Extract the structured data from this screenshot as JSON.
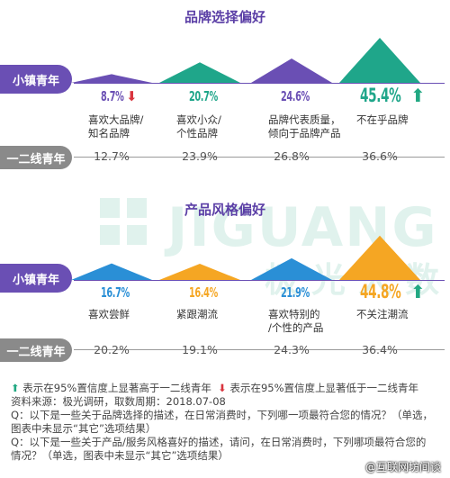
{
  "colors": {
    "purple": "#6a4fb4",
    "teal": "#1fa68a",
    "blue": "#2a8fd6",
    "orange": "#f5a623",
    "green_arrow": "#21a882",
    "red_arrow": "#d9343e"
  },
  "watermark": {
    "text": "JIGUANG",
    "cn": "极光大数据"
  },
  "brand_section": {
    "title": "品牌选择偏好",
    "row1_label": "小镇青年",
    "row2_label": "一二线青年"
  },
  "style_section": {
    "title": "产品风格偏好",
    "row1_label": "小镇青年",
    "row2_label": "一二线青年"
  },
  "chart_data": [
    {
      "type": "bar",
      "title": "品牌选择偏好",
      "categories": [
        "喜欢大品牌/知名品牌",
        "喜欢小众/个性品牌",
        "品牌代表质量，倾向于品牌产品",
        "不在乎品牌"
      ],
      "series": [
        {
          "name": "小镇青年",
          "values": [
            8.7,
            20.7,
            24.6,
            45.4
          ]
        },
        {
          "name": "一二线青年",
          "values": [
            12.7,
            23.9,
            26.8,
            36.6
          ]
        }
      ],
      "significance": [
        "lower",
        "none",
        "none",
        "higher"
      ]
    },
    {
      "type": "bar",
      "title": "产品风格偏好",
      "categories": [
        "喜欢尝鲜",
        "紧跟潮流",
        "喜欢特别的/个性的产品",
        "不关注潮流"
      ],
      "series": [
        {
          "name": "小镇青年",
          "values": [
            16.7,
            16.4,
            21.9,
            44.8
          ]
        },
        {
          "name": "一二线青年",
          "values": [
            20.2,
            19.1,
            24.3,
            36.4
          ]
        }
      ],
      "significance": [
        "none",
        "none",
        "none",
        "higher"
      ]
    }
  ],
  "brand_items": [
    {
      "pct": "8.7%",
      "label1": "喜欢大品牌/",
      "label2": "知名品牌",
      "sec": "12.7%"
    },
    {
      "pct": "20.7%",
      "label1": "喜欢小众/",
      "label2": "个性品牌",
      "sec": "23.9%"
    },
    {
      "pct": "24.6%",
      "label1": "品牌代表质量，",
      "label2": "倾向于品牌产品",
      "sec": "26.8%"
    },
    {
      "pct": "45.4%",
      "label1": "不在乎品牌",
      "label2": "",
      "sec": "36.6%"
    }
  ],
  "style_items": [
    {
      "pct": "16.7%",
      "label1": "喜欢尝鲜",
      "label2": "",
      "sec": "20.2%"
    },
    {
      "pct": "16.4%",
      "label1": "紧跟潮流",
      "label2": "",
      "sec": "19.1%"
    },
    {
      "pct": "21.9%",
      "label1": "喜欢特别的",
      "label2": "/个性的产品",
      "sec": "24.3%"
    },
    {
      "pct": "44.8%",
      "label1": "不关注潮流",
      "label2": "",
      "sec": "36.4%"
    }
  ],
  "legend": {
    "higher": "表示在95%置信度上显著高于一二线青年",
    "lower": "表示在95%置信度上显著低于一二线青年"
  },
  "footer": {
    "source": "资料来源：极光调研，取数周期：2018.07-08",
    "q1": "Q：以下是一些关于品牌选择的描述，在日常消费时，下列哪一项最符合您的情况？（单选，",
    "q1b": "图表中未显示“其它”选项结果）",
    "q2": "Q：以下是一些关于产品/服务风格喜好的描述，请问，在日常消费时，下列哪项最符合您的",
    "q2b": "情况？（单选，图表中未显示“其它”选项结果）"
  },
  "credit": "@互联网坊间谈"
}
